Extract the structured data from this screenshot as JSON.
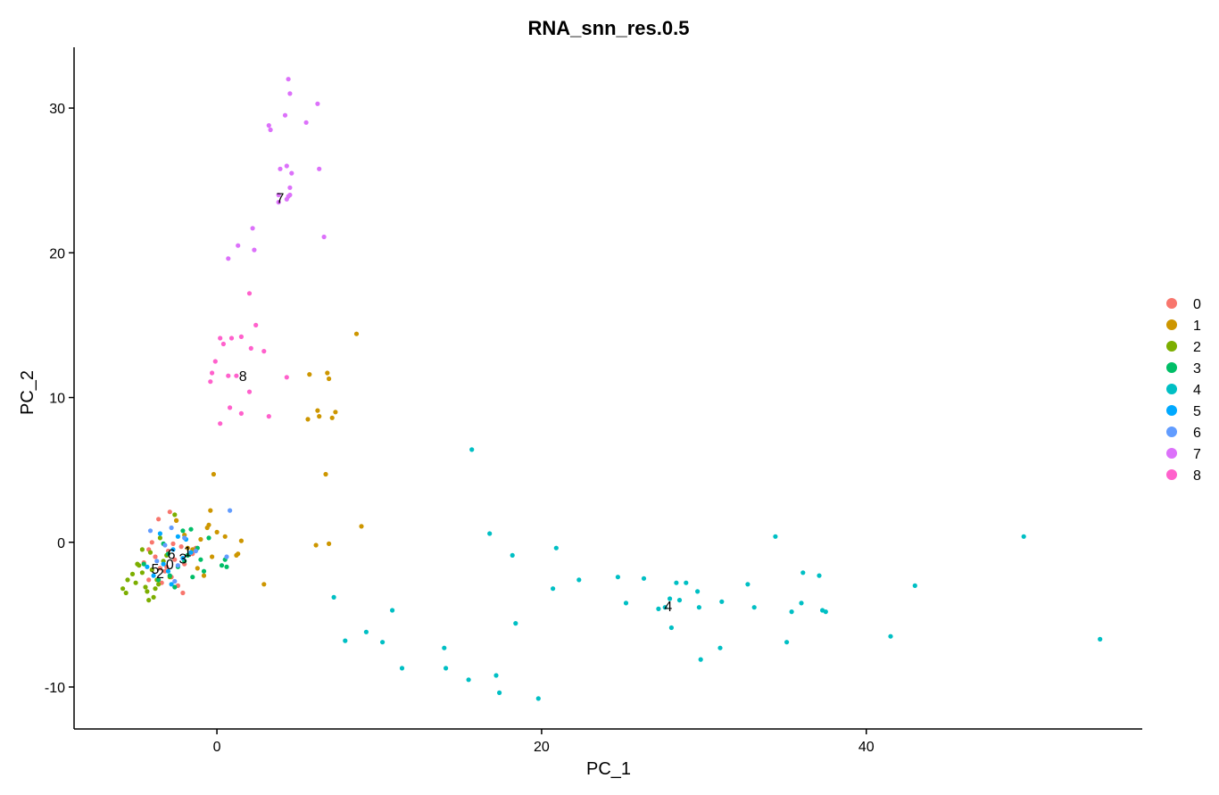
{
  "chart_data": {
    "type": "scatter",
    "title": "RNA_snn_res.0.5",
    "xlabel": "PC_1",
    "ylabel": "PC_2",
    "xlim": [
      -8.8,
      57
    ],
    "ylim": [
      -12.9,
      34.2
    ],
    "x_ticks": [
      0,
      20,
      40
    ],
    "y_ticks": [
      -10,
      0,
      10,
      20,
      30
    ],
    "x_tick_labels": [
      "0",
      "20",
      "40"
    ],
    "y_tick_labels": [
      "-10",
      "0",
      "10",
      "20",
      "30"
    ],
    "grid": false,
    "legend_position": "right",
    "series": [
      {
        "name": "0",
        "color": "#F8766D",
        "x": [
          -2.6,
          -3.0,
          -3.5,
          -2.2,
          -2.8,
          -3.8,
          -4.2,
          -2.0,
          -1.5,
          -3.2,
          -2.4,
          -4.5,
          -3.6,
          -1.8,
          -2.9,
          -3.4,
          -2.1,
          -4.0,
          -3.1,
          -2.5,
          -4.2,
          -1.3,
          -2.7
        ],
        "y": [
          -1.2,
          -0.6,
          -1.8,
          -0.3,
          -2.4,
          -1.0,
          -0.5,
          -1.5,
          -0.8,
          -2.0,
          -3.0,
          -1.4,
          1.6,
          -0.9,
          2.1,
          -2.8,
          -3.5,
          0.0,
          -1.7,
          1.5,
          -2.6,
          -0.4,
          -0.1
        ]
      },
      {
        "name": "1",
        "color": "#CD9600",
        "x": [
          -2.0,
          -1.5,
          -1.0,
          -0.5,
          0.0,
          -0.3,
          -1.2,
          -0.8,
          0.5,
          1.3,
          1.5,
          1.2,
          2.9,
          -0.2,
          -0.4,
          6.8,
          8.6,
          5.7,
          6.2,
          6.9,
          7.1,
          6.7,
          6.3,
          6.1,
          7.3,
          5.6,
          6.9,
          8.9,
          -1.8,
          -2.5,
          -0.6
        ],
        "y": [
          0.5,
          -0.5,
          0.2,
          1.2,
          0.7,
          -1.0,
          -1.8,
          -2.3,
          0.4,
          -0.8,
          0.1,
          -0.9,
          -2.9,
          4.7,
          2.2,
          11.7,
          14.4,
          11.6,
          9.1,
          11.3,
          8.6,
          4.7,
          8.7,
          -0.2,
          9.0,
          8.5,
          -0.1,
          1.1,
          -0.4,
          1.5,
          1.0
        ]
      },
      {
        "name": "2",
        "color": "#7CAE00",
        "x": [
          -4.6,
          -5.0,
          -5.5,
          -4.3,
          -3.9,
          -4.8,
          -5.6,
          -3.6,
          -4.0,
          -4.4,
          -3.3,
          -2.9,
          -4.1,
          -5.2,
          -3.5,
          -3.8,
          -4.2,
          -2.6,
          -5.8,
          -4.9,
          -3.1,
          -4.6,
          -3.7
        ],
        "y": [
          -2.1,
          -2.8,
          -2.6,
          -3.4,
          -3.8,
          -1.6,
          -3.5,
          -2.9,
          -1.9,
          -3.1,
          -1.3,
          -2.4,
          -0.7,
          -2.2,
          0.3,
          -3.2,
          -4.0,
          1.9,
          -3.2,
          -1.5,
          -0.9,
          -0.5,
          -2.6
        ]
      },
      {
        "name": "3",
        "color": "#00BE67",
        "x": [
          -2.4,
          -1.8,
          -1.0,
          -2.9,
          -3.3,
          -0.5,
          -1.5,
          -2.1,
          0.5,
          0.3,
          -3.6,
          -2.0,
          -1.2,
          -0.8,
          -2.6,
          -4.5,
          -1.6,
          0.6,
          -3.0
        ],
        "y": [
          -1.7,
          -0.9,
          -1.2,
          -2.3,
          -0.1,
          0.3,
          -2.4,
          0.8,
          -1.2,
          -1.6,
          -2.6,
          -1.3,
          -0.4,
          -2.0,
          -3.1,
          -1.5,
          0.9,
          -1.7,
          -0.8
        ]
      },
      {
        "name": "4",
        "color": "#00BFC4",
        "x": [
          15.7,
          16.8,
          18.2,
          18.4,
          20.9,
          20.7,
          22.3,
          24.7,
          25.2,
          26.3,
          28.3,
          28.9,
          29.6,
          29.7,
          27.9,
          27.6,
          28.5,
          27.2,
          28.0,
          7.2,
          7.9,
          9.2,
          10.2,
          10.8,
          11.4,
          14.0,
          14.1,
          15.5,
          17.2,
          17.4,
          19.8,
          29.8,
          31.0,
          31.1,
          32.7,
          33.1,
          34.4,
          35.1,
          35.4,
          36.0,
          36.1,
          37.1,
          37.3,
          37.5,
          41.5,
          43.0,
          49.7,
          54.4
        ],
        "y": [
          6.4,
          0.6,
          -0.9,
          -5.6,
          -0.4,
          -3.2,
          -2.6,
          -2.4,
          -4.2,
          -2.5,
          -2.8,
          -2.8,
          -3.4,
          -4.5,
          -3.9,
          -4.5,
          -4.0,
          -4.6,
          -5.9,
          -3.8,
          -6.8,
          -6.2,
          -6.9,
          -4.7,
          -8.7,
          -7.3,
          -8.7,
          -9.5,
          -9.2,
          -10.4,
          -10.8,
          -8.1,
          -7.3,
          -4.1,
          -2.9,
          -4.5,
          0.4,
          -6.9,
          -4.8,
          -4.2,
          -2.1,
          -2.3,
          -4.7,
          -4.8,
          -6.5,
          -3.0,
          0.4,
          -6.7
        ]
      },
      {
        "name": "5",
        "color": "#00A9FF",
        "x": [
          -2.7,
          -3.3,
          -2.1,
          -3.9,
          -2.4,
          -1.6,
          -3.0,
          -4.3,
          -2.8,
          -1.9,
          -3.5
        ],
        "y": [
          -0.5,
          -1.5,
          -1.1,
          -2.3,
          0.4,
          -0.7,
          -2.0,
          -1.7,
          -2.9,
          0.2,
          0.6
        ]
      },
      {
        "name": "6",
        "color": "#619CFF",
        "x": [
          -2.8,
          -3.2,
          -2.4,
          -4.1,
          -3.7,
          -2.0,
          -1.3,
          0.6,
          0.8,
          -2.6
        ],
        "y": [
          1.0,
          -0.2,
          -1.6,
          0.8,
          -1.3,
          0.3,
          -0.6,
          -1.0,
          2.2,
          -2.7
        ]
      },
      {
        "name": "7",
        "color": "#DC71FA",
        "x": [
          4.4,
          4.5,
          4.6,
          4.2,
          3.2,
          3.3,
          5.5,
          6.2,
          4.5,
          4.3,
          3.9,
          4.4,
          6.3,
          4.5,
          4.3,
          3.8,
          3.8,
          6.6,
          2.2,
          1.3,
          2.3,
          0.7
        ],
        "y": [
          32.0,
          31.0,
          25.5,
          29.5,
          28.8,
          28.5,
          29.0,
          30.3,
          24.5,
          26.0,
          25.8,
          23.9,
          25.8,
          24.0,
          23.7,
          23.5,
          24.0,
          21.1,
          21.7,
          20.5,
          20.2,
          19.6
        ]
      },
      {
        "name": "8",
        "color": "#FF61CC",
        "x": [
          2.0,
          2.4,
          1.5,
          0.2,
          0.9,
          0.4,
          2.9,
          2.1,
          -0.1,
          -0.3,
          -0.4,
          0.7,
          1.2,
          4.3,
          2.0,
          0.8,
          1.5,
          3.2,
          0.2
        ],
        "y": [
          17.2,
          15.0,
          14.2,
          14.1,
          14.1,
          13.7,
          13.2,
          13.4,
          12.5,
          11.7,
          11.1,
          11.5,
          11.5,
          11.4,
          10.4,
          9.3,
          8.9,
          8.7,
          8.2
        ]
      }
    ],
    "cluster_labels": [
      {
        "text": "0",
        "x": -2.9,
        "y": -1.5
      },
      {
        "text": "1",
        "x": -1.8,
        "y": -0.6
      },
      {
        "text": "2",
        "x": -3.5,
        "y": -2.1
      },
      {
        "text": "3",
        "x": -2.1,
        "y": -1.1
      },
      {
        "text": "4",
        "x": 27.8,
        "y": -4.4
      },
      {
        "text": "5",
        "x": -3.8,
        "y": -1.8
      },
      {
        "text": "6",
        "x": -2.8,
        "y": -0.8
      },
      {
        "text": "7",
        "x": 3.9,
        "y": 23.8
      },
      {
        "text": "8",
        "x": 1.6,
        "y": 11.5
      }
    ]
  }
}
